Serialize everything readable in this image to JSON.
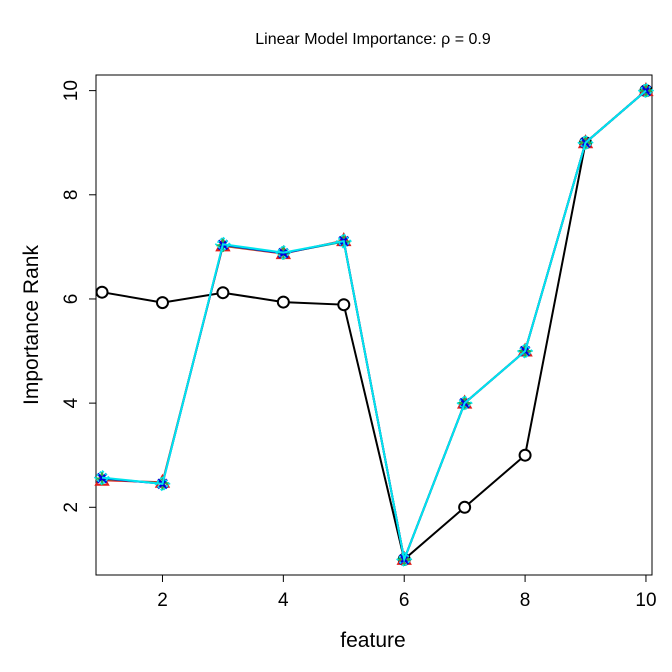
{
  "chart_data": {
    "type": "line",
    "title": "Linear Model Importance: ρ = 0.9",
    "xlabel": "feature",
    "ylabel": "Importance Rank",
    "xlim": [
      0.9,
      10.1
    ],
    "ylim": [
      0.7,
      10.3
    ],
    "x_ticks": [
      2,
      4,
      6,
      8,
      10
    ],
    "y_ticks": [
      2,
      4,
      6,
      8,
      10
    ],
    "x_tick_labels": [
      "2",
      "4",
      "6",
      "8",
      "10"
    ],
    "y_tick_labels": [
      "2",
      "4",
      "6",
      "8",
      "10"
    ],
    "x": [
      1,
      2,
      3,
      4,
      5,
      6,
      7,
      8,
      9,
      10
    ],
    "series": [
      {
        "name": "black-circles",
        "color": "#000000",
        "marker": "open-circle",
        "values": [
          6.13,
          5.93,
          6.12,
          5.94,
          5.89,
          1.0,
          2.0,
          3.0,
          9.0,
          10.0
        ]
      },
      {
        "name": "red-triangles",
        "color": "#e0201b",
        "marker": "triangle",
        "values": [
          2.52,
          2.48,
          7.02,
          6.87,
          7.12,
          1.0,
          4.0,
          5.0,
          9.0,
          10.0
        ]
      },
      {
        "name": "green-plus",
        "color": "#22b14c",
        "marker": "plus",
        "values": [
          2.55,
          2.46,
          7.03,
          6.88,
          7.1,
          1.0,
          4.0,
          5.0,
          9.0,
          10.0
        ]
      },
      {
        "name": "blue-x",
        "color": "#0000dd",
        "marker": "x",
        "values": [
          2.56,
          2.45,
          7.04,
          6.88,
          7.11,
          1.0,
          4.0,
          5.0,
          9.0,
          10.0
        ]
      },
      {
        "name": "cyan-diamond",
        "color": "#00e5ee",
        "marker": "diamond",
        "values": [
          2.57,
          2.45,
          7.05,
          6.89,
          7.11,
          1.0,
          4.0,
          5.0,
          9.0,
          10.0
        ]
      }
    ]
  }
}
